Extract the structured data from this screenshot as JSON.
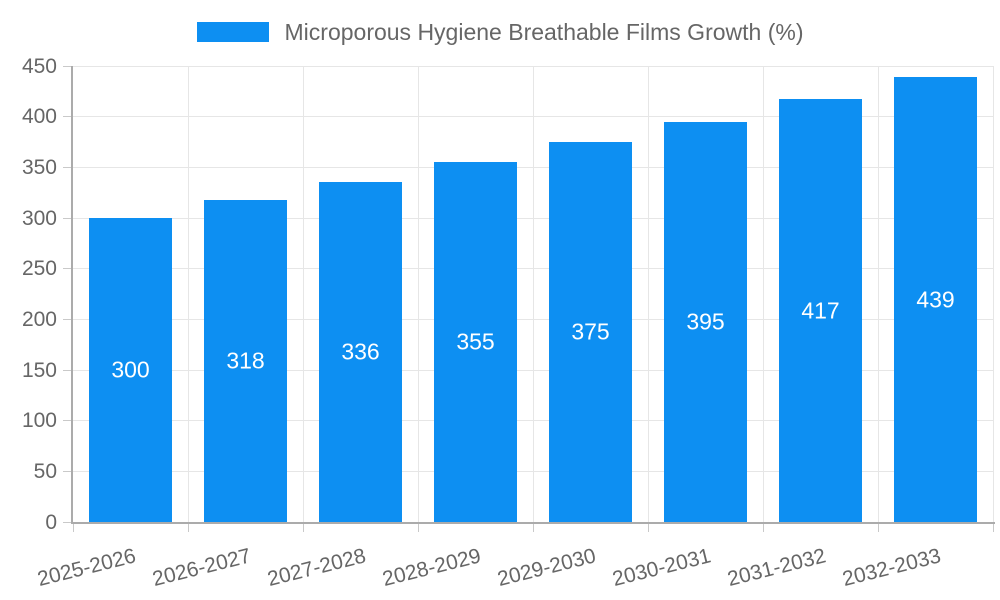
{
  "legend": {
    "label": "Microporous Hygiene Breathable Films Growth (%)"
  },
  "chart_data": {
    "type": "bar",
    "title": "Microporous Hygiene Breathable Films Growth (%)",
    "categories": [
      "2025-2026",
      "2026-2027",
      "2027-2028",
      "2028-2029",
      "2029-2030",
      "2030-2031",
      "2031-2032",
      "2032-2033"
    ],
    "values": [
      300,
      318,
      336,
      355,
      375,
      395,
      417,
      439
    ],
    "xlabel": "",
    "ylabel": "",
    "ylim": [
      0,
      450
    ],
    "yticks": [
      0,
      50,
      100,
      150,
      200,
      250,
      300,
      350,
      400,
      450
    ],
    "grid": true,
    "legend_position": "top",
    "value_labels": "inside-center-white"
  },
  "colors": {
    "bar": "#0d8ff2",
    "axis_line": "#ababab",
    "gridline": "#e6e6e6",
    "tick": "#c9c9c9",
    "axis_text": "#666666",
    "value_label_text": "#ffffff",
    "background": "#ffffff"
  }
}
